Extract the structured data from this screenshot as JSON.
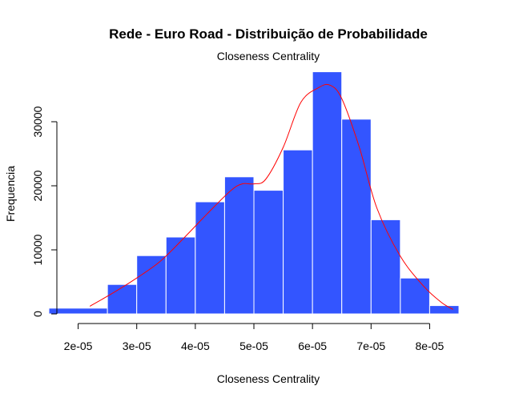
{
  "chart_data": {
    "type": "bar",
    "title": "Rede - Euro Road - Distribuição de Probabilidade",
    "subtitle": "Closeness Centrality",
    "xlabel": "Closeness Centrality",
    "ylabel": "Frequencia",
    "bin_edges": [
      1.5e-05,
      2.5e-05,
      3e-05,
      3.5e-05,
      4e-05,
      4.5e-05,
      5e-05,
      5.5e-05,
      6e-05,
      6.5e-05,
      7e-05,
      7.5e-05,
      8e-05,
      8.5e-05
    ],
    "values": [
      900,
      4600,
      9100,
      12000,
      17500,
      21400,
      19300,
      25600,
      37800,
      30400,
      14700,
      5600,
      1300
    ],
    "xlim": [
      1.5e-05,
      8.5e-05
    ],
    "ylim": [
      0,
      40000
    ],
    "x_ticks": [
      "2e-05",
      "3e-05",
      "4e-05",
      "5e-05",
      "6e-05",
      "7e-05",
      "8e-05"
    ],
    "x_tick_values": [
      2e-05,
      3e-05,
      4e-05,
      5e-05,
      6e-05,
      7e-05,
      8e-05
    ],
    "y_ticks": [
      "0",
      "10000",
      "20000",
      "30000"
    ],
    "y_tick_values": [
      0,
      10000,
      20000,
      30000
    ],
    "bar_color": "#3355ff",
    "bar_border": "#ffffff",
    "curve_color": "#ff0000",
    "density_curve": {
      "x": [
        2.2e-05,
        2.6e-05,
        3e-05,
        3.4e-05,
        3.8e-05,
        4.2e-05,
        4.6e-05,
        4.8e-05,
        5e-05,
        5.2e-05,
        5.5e-05,
        5.8e-05,
        6.1e-05,
        6.3e-05,
        6.5e-05,
        6.8e-05,
        7.1e-05,
        7.5e-05,
        7.9e-05,
        8.2e-05,
        8.4e-05
      ],
      "y": [
        1200,
        3300,
        5600,
        8200,
        11800,
        15600,
        19200,
        20300,
        20300,
        21000,
        26000,
        33000,
        35300,
        35700,
        33600,
        26000,
        16500,
        9000,
        4300,
        1800,
        700
      ]
    }
  }
}
